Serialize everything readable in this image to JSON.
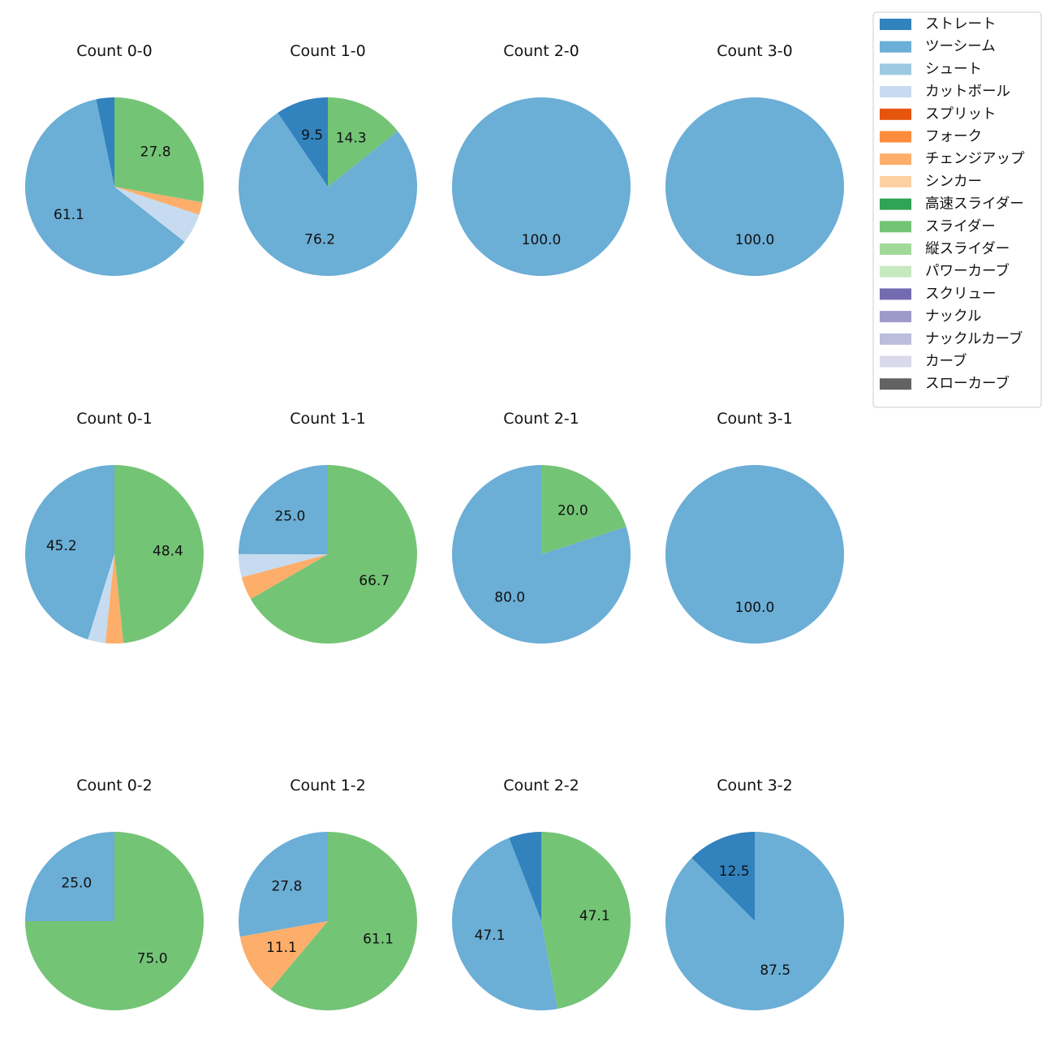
{
  "legend": {
    "position": "top-right",
    "items": [
      {
        "name": "ストレート",
        "color": "#3182bd"
      },
      {
        "name": "ツーシーム",
        "color": "#6baed6"
      },
      {
        "name": "シュート",
        "color": "#9ecae1"
      },
      {
        "name": "カットボール",
        "color": "#c6dbef"
      },
      {
        "name": "スプリット",
        "color": "#e6550d"
      },
      {
        "name": "フォーク",
        "color": "#fd8d3c"
      },
      {
        "name": "チェンジアップ",
        "color": "#fdae6b"
      },
      {
        "name": "シンカー",
        "color": "#fdd0a2"
      },
      {
        "name": "高速スライダー",
        "color": "#31a354"
      },
      {
        "name": "スライダー",
        "color": "#74c476"
      },
      {
        "name": "縦スライダー",
        "color": "#a1d99b"
      },
      {
        "name": "パワーカーブ",
        "color": "#c7e9c0"
      },
      {
        "name": "スクリュー",
        "color": "#756bb1"
      },
      {
        "name": "ナックル",
        "color": "#9e9ac8"
      },
      {
        "name": "ナックルカーブ",
        "color": "#bcbddc"
      },
      {
        "name": "カーブ",
        "color": "#dadaeb"
      },
      {
        "name": "スローカーブ",
        "color": "#636363"
      }
    ]
  },
  "chart_data": [
    {
      "type": "pie",
      "title": "Count 0-0",
      "slices": [
        {
          "name": "ストレート",
          "value": 3.3
        },
        {
          "name": "ツーシーム",
          "value": 61.1,
          "label": "61.1"
        },
        {
          "name": "カットボール",
          "value": 5.5
        },
        {
          "name": "チェンジアップ",
          "value": 2.3
        },
        {
          "name": "スライダー",
          "value": 27.8,
          "label": "27.8"
        }
      ]
    },
    {
      "type": "pie",
      "title": "Count 1-0",
      "slices": [
        {
          "name": "ストレート",
          "value": 9.5,
          "label": "9.5"
        },
        {
          "name": "ツーシーム",
          "value": 76.2,
          "label": "76.2"
        },
        {
          "name": "スライダー",
          "value": 14.3,
          "label": "14.3"
        }
      ]
    },
    {
      "type": "pie",
      "title": "Count 2-0",
      "slices": [
        {
          "name": "ツーシーム",
          "value": 100.0,
          "label": "100.0"
        }
      ]
    },
    {
      "type": "pie",
      "title": "Count 3-0",
      "slices": [
        {
          "name": "ツーシーム",
          "value": 100.0,
          "label": "100.0"
        }
      ]
    },
    {
      "type": "pie",
      "title": "Count 0-1",
      "slices": [
        {
          "name": "ツーシーム",
          "value": 45.2,
          "label": "45.2"
        },
        {
          "name": "カットボール",
          "value": 3.2
        },
        {
          "name": "チェンジアップ",
          "value": 3.2
        },
        {
          "name": "スライダー",
          "value": 48.4,
          "label": "48.4"
        }
      ]
    },
    {
      "type": "pie",
      "title": "Count 1-1",
      "slices": [
        {
          "name": "ツーシーム",
          "value": 25.0,
          "label": "25.0"
        },
        {
          "name": "カットボール",
          "value": 4.2
        },
        {
          "name": "チェンジアップ",
          "value": 4.2
        },
        {
          "name": "スライダー",
          "value": 66.7,
          "label": "66.7"
        }
      ]
    },
    {
      "type": "pie",
      "title": "Count 2-1",
      "slices": [
        {
          "name": "ツーシーム",
          "value": 80.0,
          "label": "80.0"
        },
        {
          "name": "スライダー",
          "value": 20.0,
          "label": "20.0"
        }
      ]
    },
    {
      "type": "pie",
      "title": "Count 3-1",
      "slices": [
        {
          "name": "ツーシーム",
          "value": 100.0,
          "label": "100.0"
        }
      ]
    },
    {
      "type": "pie",
      "title": "Count 0-2",
      "slices": [
        {
          "name": "ツーシーム",
          "value": 25.0,
          "label": "25.0"
        },
        {
          "name": "スライダー",
          "value": 75.0,
          "label": "75.0"
        }
      ]
    },
    {
      "type": "pie",
      "title": "Count 1-2",
      "slices": [
        {
          "name": "ツーシーム",
          "value": 27.8,
          "label": "27.8"
        },
        {
          "name": "チェンジアップ",
          "value": 11.1,
          "label": "11.1"
        },
        {
          "name": "スライダー",
          "value": 61.1,
          "label": "61.1"
        }
      ]
    },
    {
      "type": "pie",
      "title": "Count 2-2",
      "slices": [
        {
          "name": "ストレート",
          "value": 5.9
        },
        {
          "name": "ツーシーム",
          "value": 47.1,
          "label": "47.1"
        },
        {
          "name": "スライダー",
          "value": 47.1,
          "label": "47.1"
        }
      ]
    },
    {
      "type": "pie",
      "title": "Count 3-2",
      "slices": [
        {
          "name": "ストレート",
          "value": 12.5,
          "label": "12.5"
        },
        {
          "name": "ツーシーム",
          "value": 87.5,
          "label": "87.5"
        }
      ]
    }
  ]
}
